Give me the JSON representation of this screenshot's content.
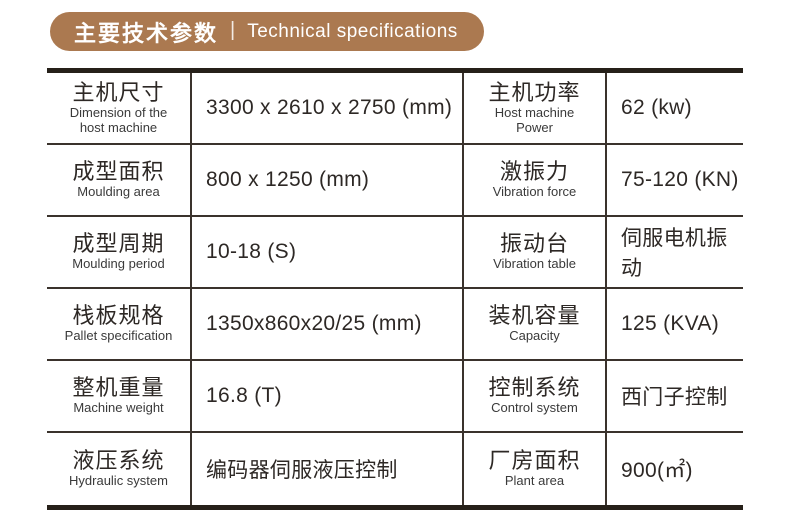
{
  "header": {
    "title_zh": "主要技术参数",
    "divider": "|",
    "title_en": "Technical specifications",
    "pill_color": "#ab7950",
    "text_color": "#ffffff"
  },
  "table": {
    "border_color_thick": "#262019",
    "border_color_thin": "#3a322c",
    "rows": [
      {
        "c0": {
          "zh": "主机尺寸",
          "en": "Dimension of the\nhost machine"
        },
        "c1": {
          "value": "3300 x 2610 x 2750 (mm)"
        },
        "c2": {
          "zh": "主机功率",
          "en": "Host machine\nPower"
        },
        "c3": {
          "value": "62 (kw)"
        }
      },
      {
        "c0": {
          "zh": "成型面积",
          "en": "Moulding area"
        },
        "c1": {
          "value": "800 x 1250 (mm)"
        },
        "c2": {
          "zh": "激振力",
          "en": "Vibration force"
        },
        "c3": {
          "value": "75-120 (KN)"
        }
      },
      {
        "c0": {
          "zh": "成型周期",
          "en": "Moulding period"
        },
        "c1": {
          "value": "10-18 (S)"
        },
        "c2": {
          "zh": "振动台",
          "en": "Vibration table"
        },
        "c3": {
          "value": "伺服电机振动"
        }
      },
      {
        "c0": {
          "zh": "栈板规格",
          "en": "Pallet specification"
        },
        "c1": {
          "value": "1350x860x20/25 (mm)"
        },
        "c2": {
          "zh": "装机容量",
          "en": "Capacity"
        },
        "c3": {
          "value": "125 (KVA)"
        }
      },
      {
        "c0": {
          "zh": "整机重量",
          "en": "Machine weight"
        },
        "c1": {
          "value": "16.8 (T)"
        },
        "c2": {
          "zh": "控制系统",
          "en": "Control system"
        },
        "c3": {
          "value": "西门子控制"
        }
      },
      {
        "c0": {
          "zh": "液压系统",
          "en": "Hydraulic system"
        },
        "c1": {
          "value": "编码器伺服液压控制"
        },
        "c2": {
          "zh": "厂房面积",
          "en": "Plant area"
        },
        "c3": {
          "value": "900(㎡)"
        }
      }
    ]
  }
}
